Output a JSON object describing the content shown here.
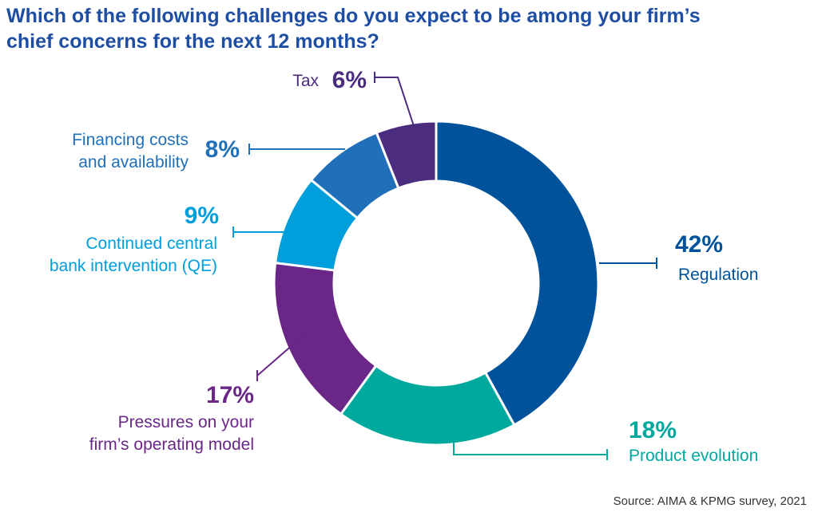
{
  "title": {
    "line1": "Which of the following challenges do you expect to be among your firm’s",
    "line2": "chief concerns for the next 12 months?"
  },
  "source": "Source: AIMA & KPMG survey, 2021",
  "chart_data": {
    "type": "pie",
    "donut": true,
    "title": "Which of the following challenges do you expect to be among your firm’s chief concerns for the next 12 months?",
    "slices": [
      {
        "label": [
          "Regulation"
        ],
        "value": 42,
        "pct_label": "42%",
        "color": "#00539b"
      },
      {
        "label": [
          "Product evolution"
        ],
        "value": 18,
        "pct_label": "18%",
        "color": "#00a99e"
      },
      {
        "label": [
          "Pressures on your",
          "firm’s operating model"
        ],
        "value": 17,
        "pct_label": "17%",
        "color": "#6a2787"
      },
      {
        "label": [
          "Continued central",
          "bank intervention (QE)"
        ],
        "value": 9,
        "pct_label": "9%",
        "color": "#009edb"
      },
      {
        "label": [
          "Financing costs",
          "and availability"
        ],
        "value": 8,
        "pct_label": "8%",
        "color": "#1f70b8"
      },
      {
        "label": [
          "Tax"
        ],
        "value": 6,
        "pct_label": "6%",
        "color": "#4c2c7f"
      }
    ]
  }
}
